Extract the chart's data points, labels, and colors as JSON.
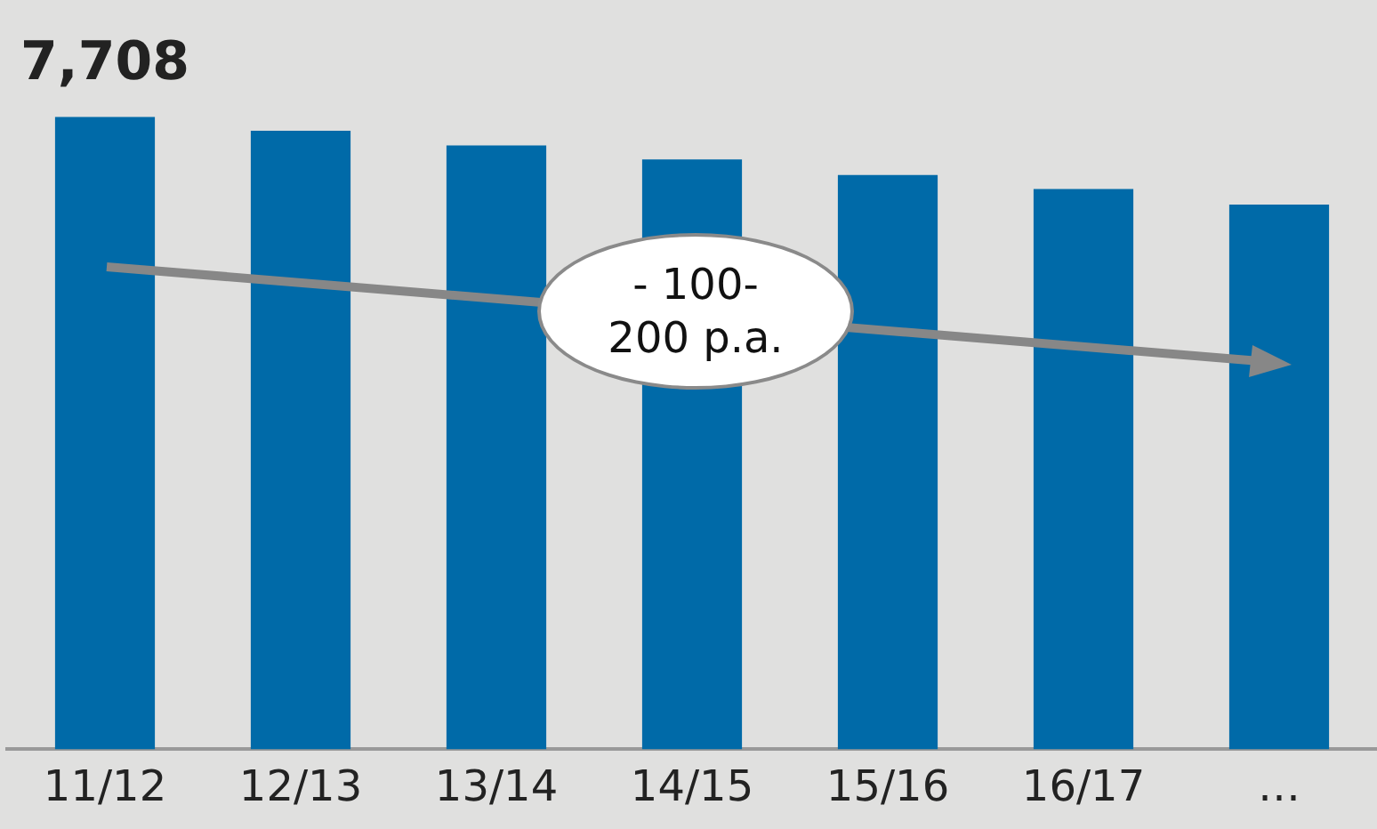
{
  "chart_data": {
    "type": "bar",
    "categories": [
      "11/12",
      "12/13",
      "13/14",
      "14/15",
      "15/16",
      "16/17",
      "…"
    ],
    "values": [
      7708,
      7540,
      7360,
      7190,
      7000,
      6830,
      6640
    ],
    "value_labels": [
      "7,708",
      null,
      null,
      null,
      null,
      null,
      null
    ],
    "color": "#006aa8",
    "legend": false,
    "grid": false,
    "annotations": [
      "- 100-\n200 p.a."
    ]
  }
}
